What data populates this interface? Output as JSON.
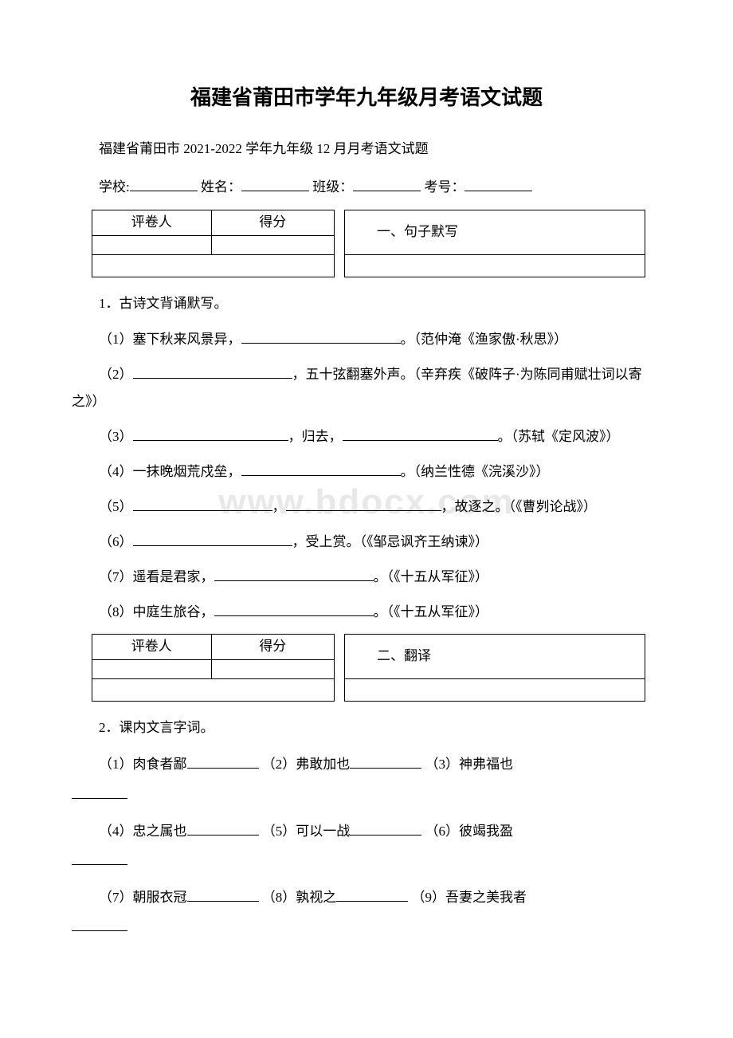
{
  "watermark": "www.bdocx.com",
  "title": "福建省莆田市学年九年级月考语文试题",
  "subtitle": "福建省莆田市 2021-2022 学年九年级 12 月月考语文试题",
  "info": {
    "school_label": "学校:",
    "name_label": "姓名：",
    "class_label": "班级：",
    "exam_no_label": "考号："
  },
  "score_headers": {
    "grader": "评卷人",
    "score": "得分"
  },
  "sections": {
    "s1": "一、句子默写",
    "s2": "二、翻译"
  },
  "q1": {
    "heading": "1．古诗文背诵默写。",
    "items": {
      "i1_a": "（1）塞下秋来风景异，",
      "i1_b": "。（范仲淹《渔家傲·秋思》）",
      "i2_a": "（2）",
      "i2_b": "，五十弦翻塞外声。（辛弃疾《破阵子·为陈同甫赋壮词以寄之》）",
      "i3_a": "（3）",
      "i3_b": "，归去，",
      "i3_c": "。（苏轼《定风波》）",
      "i4_a": "（4）一抹晚烟荒戍垒，",
      "i4_b": "。（纳兰性德《浣溪沙》）",
      "i5_a": "（5）",
      "i5_b": "，",
      "i5_c": "，故逐之。（《曹刿论战》）",
      "i6_a": "（6）",
      "i6_b": "，受上赏。（《邹忌讽齐王纳谏》）",
      "i7_a": "（7）遥看是君家，",
      "i7_b": "。（《十五从军征》）",
      "i8_a": "（8）中庭生旅谷，",
      "i8_b": "。（《十五从军征》）"
    }
  },
  "q2": {
    "heading": "2．课内文言字词。",
    "items": {
      "w1": "（1）肉食者鄙",
      "w2": "（2）弗敢加也",
      "w3": "（3）神弗福也",
      "w4": "（4）忠之属也",
      "w5": "（5）可以一战",
      "w6": "（6）彼竭我盈",
      "w7": "（7）朝服衣冠",
      "w8": "（8）孰视之",
      "w9": "（9）吾妻之美我者"
    }
  }
}
